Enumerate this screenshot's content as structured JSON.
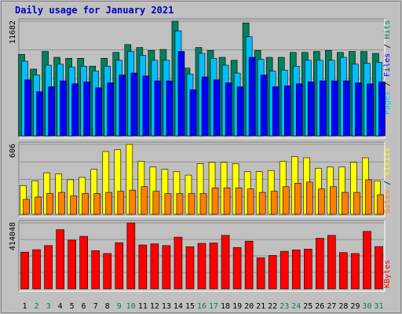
{
  "chart_data": {
    "type": "bar",
    "title": "Daily usage for January 2021",
    "categories": [
      "1",
      "2",
      "3",
      "4",
      "5",
      "6",
      "7",
      "8",
      "9",
      "10",
      "11",
      "12",
      "13",
      "14",
      "15",
      "16",
      "17",
      "18",
      "19",
      "20",
      "21",
      "22",
      "23",
      "24",
      "25",
      "26",
      "27",
      "28",
      "29",
      "30",
      "31"
    ],
    "weekend_days": [
      "2",
      "3",
      "9",
      "10",
      "16",
      "17",
      "23",
      "24",
      "30",
      "31"
    ],
    "panels": [
      {
        "id": "hits",
        "max_label": "11682",
        "max": 11682,
        "labels": [
          "Pages",
          "Files",
          "Hits"
        ],
        "series": [
          {
            "name": "Hits",
            "color": "#00805c",
            "values": [
              8300,
              6800,
              8600,
              8000,
              7900,
              7900,
              7100,
              7900,
              8500,
              9300,
              9000,
              8700,
              8800,
              11682,
              6900,
              9000,
              8700,
              8000,
              7700,
              11500,
              8700,
              8000,
              8000,
              8500,
              8500,
              8600,
              8700,
              8500,
              8600,
              8600,
              8400
            ]
          },
          {
            "name": "Files",
            "color": "#00bfff",
            "values": [
              7600,
              6200,
              7200,
              7300,
              7000,
              7100,
              6600,
              7100,
              7700,
              8600,
              8200,
              7700,
              7700,
              10700,
              6300,
              8400,
              7900,
              7200,
              6400,
              10100,
              7800,
              6600,
              6700,
              7100,
              7700,
              7700,
              7700,
              8000,
              7300,
              7400,
              7500
            ]
          },
          {
            "name": "Pages",
            "color": "#0000ff",
            "values": [
              5700,
              4500,
              5000,
              5600,
              5300,
              5500,
              4900,
              5400,
              6200,
              6400,
              6100,
              5600,
              5600,
              8600,
              4700,
              6000,
              5700,
              5400,
              5000,
              8000,
              6200,
              5000,
              5100,
              5300,
              5500,
              5600,
              5600,
              5600,
              5400,
              5300,
              5500
            ]
          }
        ]
      },
      {
        "id": "visits",
        "max_label": "606",
        "max": 606,
        "labels": [
          "Sites",
          "Visits"
        ],
        "series": [
          {
            "name": "Visits",
            "color": "#ffff00",
            "values": [
              250,
              290,
              360,
              350,
              300,
              320,
              390,
              545,
              560,
              606,
              460,
              410,
              390,
              370,
              340,
              440,
              450,
              450,
              440,
              370,
              370,
              380,
              460,
              500,
              490,
              400,
              410,
              410,
              450,
              490,
              290
            ]
          },
          {
            "name": "Sites",
            "color": "#ff8000",
            "values": [
              130,
              150,
              180,
              190,
              160,
              180,
              180,
              190,
              200,
              210,
              240,
              200,
              180,
              180,
              180,
              180,
              230,
              230,
              230,
              220,
              190,
              200,
              240,
              270,
              280,
              220,
              240,
              190,
              190,
              300,
              170
            ]
          }
        ]
      },
      {
        "id": "kbytes",
        "max_label": "414048",
        "max": 414048,
        "labels": [
          "KBytes"
        ],
        "series": [
          {
            "name": "KBytes",
            "color": "#ff0000",
            "values": [
              231000,
              246000,
              272000,
              372000,
              306000,
              330000,
              240000,
              222000,
              290000,
              414048,
              276000,
              283000,
              272000,
              325000,
              265000,
              286000,
              288000,
              336000,
              260000,
              300000,
              195000,
              210000,
              236000,
              245000,
              250000,
              318000,
              336000,
              228000,
              222000,
              361000,
              266000
            ]
          }
        ]
      }
    ]
  }
}
